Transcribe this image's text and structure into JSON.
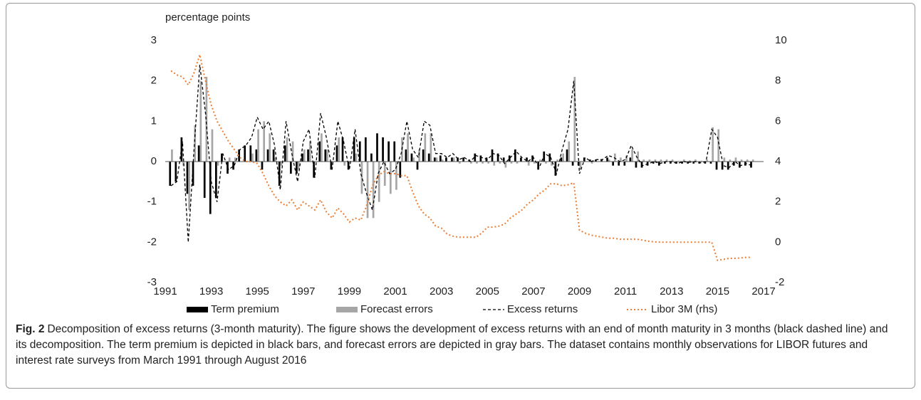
{
  "chart_data": {
    "type": "bar-line",
    "y_axis_label": "percentage points",
    "caption_label": "Fig. 2",
    "caption": "Decomposition of excess returns (3-month maturity). The figure shows the development of excess returns with an end of month maturity in 3 months (black dashed line) and its decomposition. The term premium is depicted in black bars, and forecast errors are depicted in gray bars. The dataset contains monthly observations for LIBOR futures and interest rate surveys from March 1991 through August 2016",
    "xlim": [
      1991,
      2017
    ],
    "xticks": [
      1991,
      1993,
      1995,
      1997,
      1999,
      2001,
      2003,
      2005,
      2007,
      2009,
      2011,
      2013,
      2015,
      2017
    ],
    "ylim": [
      -3,
      3
    ],
    "yticks": [
      -3,
      -2,
      -1,
      0,
      1,
      2,
      3
    ],
    "y2lim": [
      -2,
      10
    ],
    "y2ticks": [
      -2,
      0,
      2,
      4,
      6,
      8,
      10
    ],
    "x": [
      1991.25,
      1991.5,
      1991.75,
      1992,
      1992.25,
      1992.5,
      1992.75,
      1993,
      1993.25,
      1993.5,
      1993.75,
      1994,
      1994.25,
      1994.5,
      1994.75,
      1995,
      1995.25,
      1995.5,
      1995.75,
      1996,
      1996.25,
      1996.5,
      1996.75,
      1997,
      1997.25,
      1997.5,
      1997.75,
      1998,
      1998.25,
      1998.5,
      1998.75,
      1999,
      1999.25,
      1999.5,
      1999.75,
      2000,
      2000.25,
      2000.5,
      2000.75,
      2001,
      2001.25,
      2001.5,
      2001.75,
      2002,
      2002.25,
      2002.5,
      2002.75,
      2003,
      2003.25,
      2003.5,
      2003.75,
      2004,
      2004.25,
      2004.5,
      2004.75,
      2005,
      2005.25,
      2005.5,
      2005.75,
      2006,
      2006.25,
      2006.5,
      2006.75,
      2007,
      2007.25,
      2007.5,
      2007.75,
      2008,
      2008.25,
      2008.5,
      2008.75,
      2009,
      2009.25,
      2009.5,
      2009.75,
      2010,
      2010.25,
      2010.5,
      2010.75,
      2011,
      2011.25,
      2011.5,
      2011.75,
      2012,
      2012.25,
      2012.5,
      2012.75,
      2013,
      2013.25,
      2013.5,
      2013.75,
      2014,
      2014.25,
      2014.5,
      2014.75,
      2015,
      2015.25,
      2015.5,
      2015.75,
      2016,
      2016.25,
      2016.5
    ],
    "series": [
      {
        "name": "Term premium",
        "type": "bar",
        "color": "#000000",
        "values": [
          -0.6,
          -0.5,
          0.6,
          -0.8,
          -0.6,
          0.4,
          -0.9,
          -1.3,
          -0.9,
          0.2,
          -0.3,
          -0.2,
          0.3,
          0.4,
          0.4,
          0.3,
          -0.2,
          0.3,
          0.3,
          -0.6,
          0.4,
          -0.3,
          -0.3,
          0.2,
          0.3,
          -0.4,
          0.5,
          0.3,
          -0.2,
          0.4,
          0.6,
          -0.2,
          0.6,
          0.5,
          0.6,
          0.2,
          0.7,
          0.6,
          0.5,
          0.5,
          -0.4,
          0.3,
          0.2,
          -0.2,
          0.3,
          0.2,
          0.1,
          0.15,
          0.1,
          0.1,
          0.1,
          0.1,
          0.05,
          0.2,
          0.15,
          0.1,
          0.3,
          0.2,
          0.1,
          0.15,
          0.3,
          0.1,
          0.1,
          0.15,
          -0.2,
          0.25,
          0.2,
          -0.35,
          0.1,
          0.3,
          -0.1,
          -0.1,
          0.1,
          0.05,
          0.05,
          0.05,
          0.1,
          -0.1,
          -0.1,
          -0.1,
          0.1,
          -0.15,
          -0.15,
          -0.1,
          -0.05,
          -0.1,
          -0.05,
          -0.05,
          -0.05,
          -0.05,
          -0.05,
          -0.05,
          -0.05,
          -0.05,
          -0.05,
          -0.2,
          -0.2,
          -0.2,
          -0.1,
          -0.15,
          -0.1,
          -0.15
        ]
      },
      {
        "name": "Forecast errors",
        "type": "bar",
        "color": "#a6a6a6",
        "values": [
          0.3,
          0.0,
          -0.1,
          -1.2,
          0.9,
          2.0,
          2.1,
          0.8,
          -0.1,
          0.0,
          0.1,
          0.1,
          0.0,
          0.0,
          0.2,
          0.8,
          1.0,
          0.7,
          0.1,
          -0.1,
          0.6,
          0.5,
          -0.2,
          0.3,
          0.5,
          0.0,
          0.7,
          0.3,
          0.0,
          0.6,
          -0.1,
          0.0,
          0.2,
          -0.8,
          -1.4,
          -1.4,
          -1.0,
          -0.6,
          -0.8,
          -0.7,
          0.6,
          0.7,
          0.1,
          0.3,
          0.7,
          0.7,
          0.1,
          0.05,
          0.0,
          0.1,
          -0.05,
          0.0,
          -0.05,
          -0.05,
          -0.05,
          -0.05,
          -0.1,
          -0.05,
          -0.15,
          -0.05,
          -0.05,
          0.0,
          -0.1,
          -0.05,
          0.05,
          -0.05,
          -0.1,
          0.05,
          0.2,
          0.5,
          2.1,
          -0.2,
          0.0,
          -0.05,
          0.0,
          0.0,
          0.05,
          0.2,
          0.1,
          0.15,
          0.3,
          0.25,
          0.05,
          0.05,
          0.05,
          0.05,
          0.05,
          0.05,
          0.0,
          0.05,
          0.03,
          0.05,
          0.02,
          0.05,
          0.85,
          0.8,
          0.1,
          0.05,
          0.1,
          0.05,
          0.05,
          0.05
        ]
      },
      {
        "name": "Excess returns",
        "type": "line",
        "dash": "4,3",
        "color": "#000000",
        "values": [
          -0.6,
          -0.5,
          0.5,
          -2.0,
          0.3,
          2.4,
          1.2,
          -0.5,
          -1.0,
          0.2,
          -0.2,
          -0.1,
          0.3,
          0.4,
          0.6,
          1.1,
          0.8,
          1.0,
          0.4,
          -0.7,
          1.0,
          0.2,
          -0.5,
          0.5,
          0.8,
          -0.4,
          1.2,
          0.6,
          -0.2,
          1.0,
          0.5,
          -0.2,
          0.8,
          -0.3,
          -0.8,
          -1.2,
          -0.3,
          0.0,
          -0.3,
          -0.2,
          0.2,
          1.0,
          0.3,
          0.1,
          1.0,
          0.9,
          0.2,
          0.2,
          0.1,
          0.2,
          0.05,
          0.1,
          0.0,
          0.15,
          0.1,
          0.05,
          0.2,
          0.15,
          -0.05,
          0.1,
          0.25,
          0.1,
          0.0,
          0.1,
          -0.15,
          0.2,
          0.1,
          -0.3,
          0.3,
          0.8,
          2.0,
          -0.3,
          0.1,
          0.0,
          0.05,
          0.05,
          0.15,
          0.1,
          0.0,
          0.05,
          0.4,
          0.1,
          -0.1,
          -0.05,
          0.0,
          -0.05,
          0.0,
          0.0,
          -0.05,
          0.0,
          -0.02,
          0.0,
          -0.03,
          0.0,
          0.8,
          0.6,
          -0.1,
          -0.15,
          0.0,
          -0.1,
          -0.05,
          -0.1
        ]
      },
      {
        "name": "Libor 3M (rhs)",
        "type": "line",
        "axis": "y2",
        "dash": "2,3",
        "color": "#ed7d31",
        "values": [
          8.5,
          8.3,
          8.2,
          7.8,
          8.4,
          9.3,
          8.0,
          6.8,
          6.0,
          5.5,
          5.0,
          4.6,
          4.2,
          4.0,
          4.0,
          3.9,
          3.4,
          2.8,
          2.3,
          2.0,
          1.8,
          2.1,
          1.6,
          2.0,
          1.8,
          1.6,
          2.1,
          1.5,
          1.2,
          1.7,
          1.4,
          1.0,
          1.2,
          1.1,
          1.8,
          2.8,
          3.3,
          3.5,
          3.4,
          3.4,
          3.3,
          3.3,
          2.5,
          1.8,
          1.4,
          1.2,
          0.8,
          0.7,
          0.4,
          0.3,
          0.25,
          0.25,
          0.25,
          0.25,
          0.45,
          0.75,
          0.75,
          0.8,
          0.9,
          1.2,
          1.4,
          1.6,
          1.9,
          2.1,
          2.4,
          2.6,
          2.9,
          2.9,
          2.8,
          2.85,
          2.95,
          0.6,
          0.45,
          0.35,
          0.3,
          0.25,
          0.2,
          0.2,
          0.15,
          0.15,
          0.15,
          0.15,
          0.1,
          0.05,
          0.02,
          0.0,
          0.0,
          0.0,
          0.0,
          0.0,
          0.0,
          0.0,
          0.0,
          0.0,
          0.0,
          -0.9,
          -0.85,
          -0.8,
          -0.8,
          -0.78,
          -0.75,
          -0.75
        ]
      }
    ]
  }
}
